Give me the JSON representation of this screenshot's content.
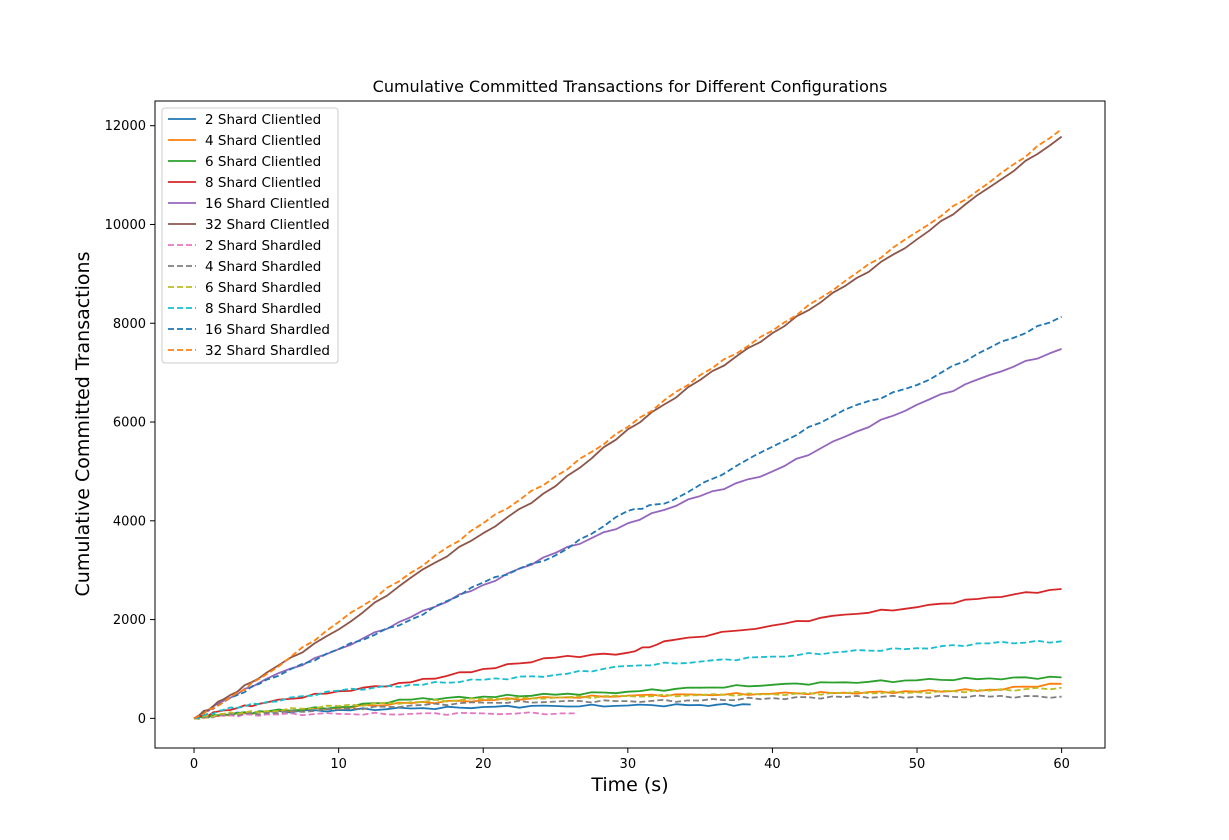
{
  "chart_data": {
    "type": "line",
    "title": "Cumulative Committed Transactions for Different Configurations",
    "xlabel": "Time (s)",
    "ylabel": "Cumulative Committed Transactions",
    "xlim": [
      -2.7,
      63
    ],
    "ylim": [
      -600,
      12500
    ],
    "xticks": [
      0,
      10,
      20,
      30,
      40,
      50,
      60
    ],
    "yticks": [
      0,
      2000,
      4000,
      6000,
      8000,
      10000,
      12000
    ],
    "grid": false,
    "legend_position": "top-left",
    "series": [
      {
        "name": "2 Shard Clientled",
        "color": "#1f77b4",
        "dash": "solid",
        "x": [
          0,
          2,
          5,
          10,
          15,
          20,
          25,
          30,
          35,
          38.5
        ],
        "y": [
          0,
          80,
          130,
          170,
          200,
          230,
          250,
          260,
          270,
          280
        ]
      },
      {
        "name": "4 Shard Clientled",
        "color": "#ff7f0e",
        "dash": "solid",
        "x": [
          0,
          2,
          5,
          10,
          15,
          20,
          25,
          30,
          35,
          40,
          45,
          50,
          55,
          60
        ],
        "y": [
          0,
          70,
          130,
          220,
          310,
          370,
          420,
          460,
          480,
          500,
          520,
          540,
          580,
          700
        ]
      },
      {
        "name": "6 Shard Clientled",
        "color": "#2ca02c",
        "dash": "solid",
        "x": [
          0,
          2,
          5,
          10,
          15,
          20,
          25,
          30,
          35,
          40,
          45,
          50,
          55,
          60
        ],
        "y": [
          0,
          80,
          140,
          230,
          380,
          440,
          480,
          540,
          620,
          680,
          730,
          770,
          810,
          830
        ]
      },
      {
        "name": "8 Shard Clientled",
        "color": "#d62728",
        "dash": "solid",
        "x": [
          0,
          2,
          5,
          10,
          15,
          20,
          25,
          30,
          33,
          40,
          45,
          50,
          55,
          60
        ],
        "y": [
          0,
          160,
          320,
          550,
          730,
          1000,
          1230,
          1330,
          1580,
          1880,
          2100,
          2250,
          2450,
          2620
        ]
      },
      {
        "name": "16 Shard Clientled",
        "color": "#9467bd",
        "dash": "solid",
        "x": [
          0,
          2,
          5,
          10,
          15,
          20,
          25,
          30,
          35,
          40,
          45,
          50,
          55,
          60
        ],
        "y": [
          0,
          350,
          800,
          1400,
          2050,
          2700,
          3350,
          3950,
          4500,
          5000,
          5700,
          6350,
          6950,
          7480
        ]
      },
      {
        "name": "32 Shard Clientled",
        "color": "#8c564b",
        "dash": "solid",
        "x": [
          0,
          2,
          5,
          10,
          15,
          20,
          25,
          30,
          35,
          40,
          45,
          50,
          55,
          60
        ],
        "y": [
          0,
          380,
          920,
          1800,
          2850,
          3750,
          4700,
          5850,
          6850,
          7800,
          8750,
          9700,
          10750,
          11780
        ]
      },
      {
        "name": "2 Shard Shardled",
        "color": "#e377c2",
        "dash": "dashed",
        "x": [
          0,
          2,
          5,
          10,
          15,
          20,
          26.5
        ],
        "y": [
          0,
          50,
          80,
          90,
          90,
          100,
          100
        ]
      },
      {
        "name": "4 Shard Shardled",
        "color": "#7f7f7f",
        "dash": "dashed",
        "x": [
          0,
          2,
          5,
          10,
          15,
          20,
          25,
          30,
          35,
          40,
          45,
          50,
          55,
          60
        ],
        "y": [
          0,
          70,
          110,
          180,
          260,
          320,
          340,
          350,
          360,
          410,
          430,
          440,
          440,
          440
        ]
      },
      {
        "name": "6 Shard Shardled",
        "color": "#bcbd22",
        "dash": "dashed",
        "x": [
          0,
          2,
          5,
          10,
          15,
          20,
          25,
          30,
          35,
          40,
          45,
          50,
          55,
          60
        ],
        "y": [
          0,
          90,
          150,
          250,
          330,
          390,
          420,
          450,
          470,
          490,
          510,
          530,
          560,
          620
        ]
      },
      {
        "name": "8 Shard Shardled",
        "color": "#17becf",
        "dash": "dashed",
        "x": [
          0,
          2,
          5,
          10,
          15,
          20,
          25,
          30,
          35,
          40,
          45,
          50,
          55,
          60
        ],
        "y": [
          0,
          170,
          330,
          560,
          680,
          780,
          880,
          1060,
          1150,
          1250,
          1350,
          1420,
          1520,
          1560
        ]
      },
      {
        "name": "16 Shard Shardled",
        "color": "#1f77b4",
        "dash": "dashed",
        "x": [
          0,
          2,
          5,
          10,
          15,
          20,
          25,
          30,
          33,
          40,
          45,
          50,
          55,
          60
        ],
        "y": [
          0,
          320,
          780,
          1400,
          2000,
          2750,
          3300,
          4200,
          4400,
          5500,
          6250,
          6750,
          7500,
          8130
        ]
      },
      {
        "name": "32 Shard Shardled",
        "color": "#ff7f0e",
        "dash": "dashed",
        "x": [
          0,
          2,
          5,
          10,
          15,
          20,
          25,
          30,
          35,
          40,
          45,
          50,
          55,
          60
        ],
        "y": [
          0,
          320,
          890,
          1950,
          2950,
          3950,
          4900,
          5900,
          6950,
          7850,
          8850,
          9850,
          10850,
          11930
        ]
      }
    ]
  }
}
